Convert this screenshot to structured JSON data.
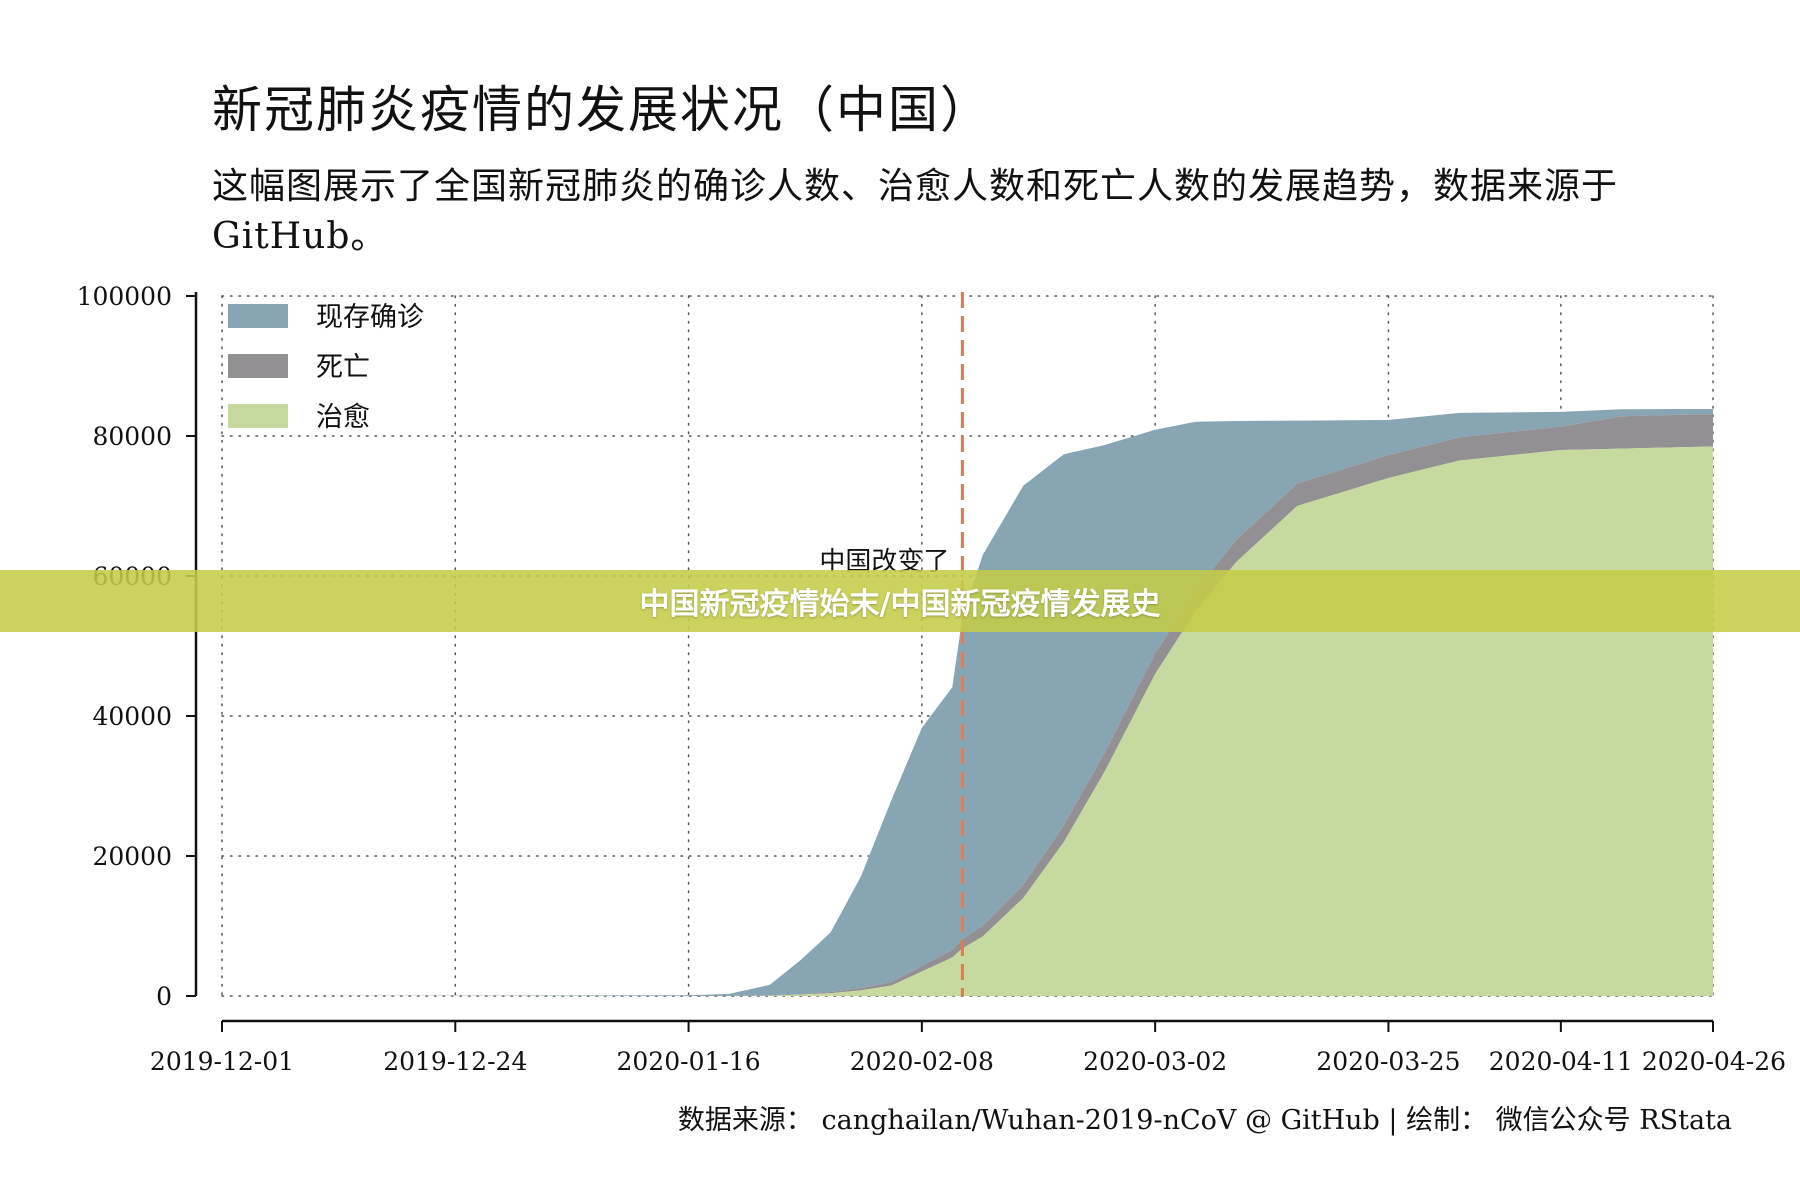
{
  "banner": {
    "text": "中国新冠疫情始末/中国新冠疫情发展史"
  },
  "colors": {
    "confirmed": "#87a5b2",
    "deaths": "#939094",
    "recovered": "#c6d99e",
    "marker": "#e07b54"
  },
  "chart_data": {
    "type": "area",
    "stacked": true,
    "title": "新冠肺炎疫情的发展状况（中国）",
    "subtitle": "这幅图展示了全国新冠肺炎的确诊人数、治愈人数和死亡人数的发展趋势，数据来源于 GitHub。",
    "caption": "数据来源： canghailan/Wuhan-2019-nCoV @ GitHub | 绘制： 微信公众号 RStata",
    "xlabel": "",
    "ylabel": "",
    "ylim": [
      0,
      100000
    ],
    "y_ticks": [
      0,
      20000,
      40000,
      60000,
      80000,
      100000
    ],
    "x_range": [
      "2019-12-01",
      "2020-04-26"
    ],
    "x_ticks": [
      "2019-12-01",
      "2019-12-24",
      "2020-01-16",
      "2020-02-08",
      "2020-03-02",
      "2020-03-25",
      "2020-04-11",
      "2020-04-26"
    ],
    "grid": true,
    "legend_position": "top-left",
    "legend": [
      "现存确诊",
      "死亡",
      "治愈"
    ],
    "x": [
      "2019-12-01",
      "2020-01-16",
      "2020-01-20",
      "2020-01-24",
      "2020-01-27",
      "2020-01-30",
      "2020-02-02",
      "2020-02-05",
      "2020-02-08",
      "2020-02-11",
      "2020-02-12",
      "2020-02-14",
      "2020-02-18",
      "2020-02-22",
      "2020-02-26",
      "2020-03-02",
      "2020-03-06",
      "2020-03-10",
      "2020-03-16",
      "2020-03-25",
      "2020-04-01",
      "2020-04-11",
      "2020-04-17",
      "2020-04-26"
    ],
    "series": [
      {
        "name": "治愈",
        "values": [
          0,
          0,
          0,
          50,
          200,
          400,
          800,
          1500,
          3500,
          5500,
          6800,
          8500,
          14000,
          22000,
          32000,
          46000,
          55000,
          62000,
          70000,
          74000,
          76500,
          78000,
          78200,
          78500
        ]
      },
      {
        "name": "死亡",
        "values": [
          0,
          0,
          10,
          40,
          80,
          170,
          300,
          500,
          810,
          1100,
          1350,
          1500,
          1900,
          2400,
          2700,
          2900,
          3040,
          3140,
          3200,
          3290,
          3310,
          3340,
          4630,
          4630
        ]
      },
      {
        "name": "现存确诊",
        "values": [
          0,
          100,
          300,
          1500,
          4800,
          8500,
          16000,
          26000,
          34000,
          37500,
          46000,
          53000,
          57000,
          53000,
          44000,
          32000,
          24000,
          17000,
          9000,
          5000,
          3500,
          2100,
          1000,
          720
        ]
      }
    ],
    "annotations": [
      {
        "text": "中国改变了",
        "x": "2020-02-12"
      }
    ]
  }
}
